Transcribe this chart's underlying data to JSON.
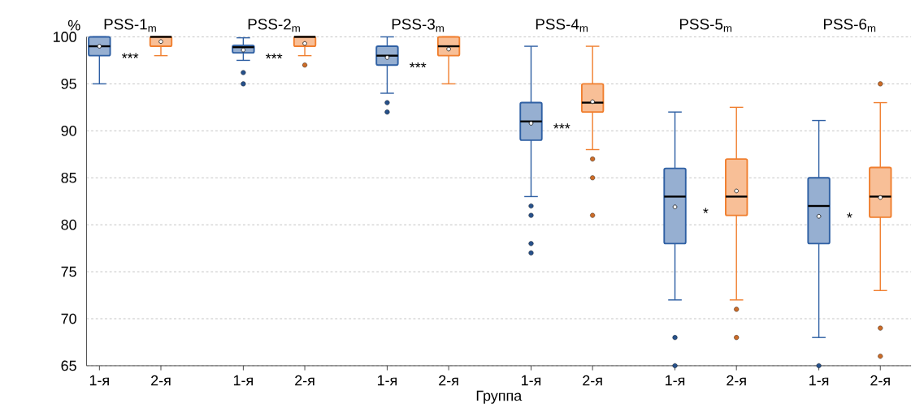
{
  "chart_data": {
    "type": "box",
    "categories": [
      "1-я",
      "2-я",
      "1-я",
      "2-я",
      "1-я",
      "2-я",
      "1-я",
      "2-я",
      "1-я",
      "2-я",
      "1-я",
      "2-я"
    ],
    "colors": [
      "#2e5fa3",
      "#f07f2f",
      "#2e5fa3",
      "#f07f2f",
      "#2e5fa3",
      "#f07f2f",
      "#2e5fa3",
      "#f07f2f",
      "#2e5fa3",
      "#f07f2f",
      "#2e5fa3",
      "#f07f2f"
    ],
    "boxes": [
      {
        "low": 95,
        "q1": 98,
        "median": 99,
        "q3": 100,
        "high": 100,
        "mean": 99
      },
      {
        "low": 98,
        "q1": 99,
        "median": 100,
        "q3": 100,
        "high": 100,
        "mean": 99.5
      },
      {
        "low": 97.5,
        "q1": 98.3,
        "median": 98.9,
        "q3": 99.1,
        "high": 99.9,
        "mean": 98.6,
        "outliers": [
          96.2,
          95
        ]
      },
      {
        "low": 98,
        "q1": 99,
        "median": 100,
        "q3": 100,
        "high": 100,
        "mean": 99.3,
        "outliers": [
          97
        ]
      },
      {
        "low": 94,
        "q1": 97,
        "median": 98,
        "q3": 99,
        "high": 100,
        "mean": 97.8,
        "outliers": [
          93,
          92
        ]
      },
      {
        "low": 95,
        "q1": 98,
        "median": 99,
        "q3": 100,
        "high": 100,
        "mean": 98.7
      },
      {
        "low": 83,
        "q1": 89,
        "median": 91,
        "q3": 93,
        "high": 99,
        "mean": 90.8,
        "outliers": [
          82,
          81,
          78,
          77
        ]
      },
      {
        "low": 88,
        "q1": 92,
        "median": 93,
        "q3": 95,
        "high": 99,
        "mean": 93.1,
        "outliers": [
          87,
          85,
          81
        ]
      },
      {
        "low": 72,
        "q1": 78,
        "median": 83,
        "q3": 86,
        "high": 92,
        "mean": 81.9,
        "outliers": [
          68,
          65
        ]
      },
      {
        "low": 72,
        "q1": 81,
        "median": 83,
        "q3": 87,
        "high": 92.5,
        "mean": 83.6,
        "outliers": [
          71,
          68
        ]
      },
      {
        "low": 68,
        "q1": 78,
        "median": 82,
        "q3": 85,
        "high": 91.1,
        "mean": 80.9,
        "outliers": [
          65
        ]
      },
      {
        "low": 73,
        "q1": 80.8,
        "median": 83,
        "q3": 86.1,
        "high": 93,
        "mean": 82.9,
        "outliers": [
          95,
          69,
          66
        ]
      }
    ],
    "ylim": [
      65,
      100
    ],
    "yticks": [
      65,
      70,
      75,
      80,
      85,
      90,
      95,
      100
    ],
    "ylabel": "%",
    "xlabel": "Группа",
    "grid": "y",
    "annotations": [
      "PSS-1$_{m}$",
      "PSS-2$_{m}$",
      "PSS-3$_{m}$",
      "PSS-4$_{m}$",
      "PSS-5$_{m}$",
      "PSS-6$_{m}$",
      "***",
      "***",
      "***",
      "***",
      "*",
      "*"
    ]
  }
}
